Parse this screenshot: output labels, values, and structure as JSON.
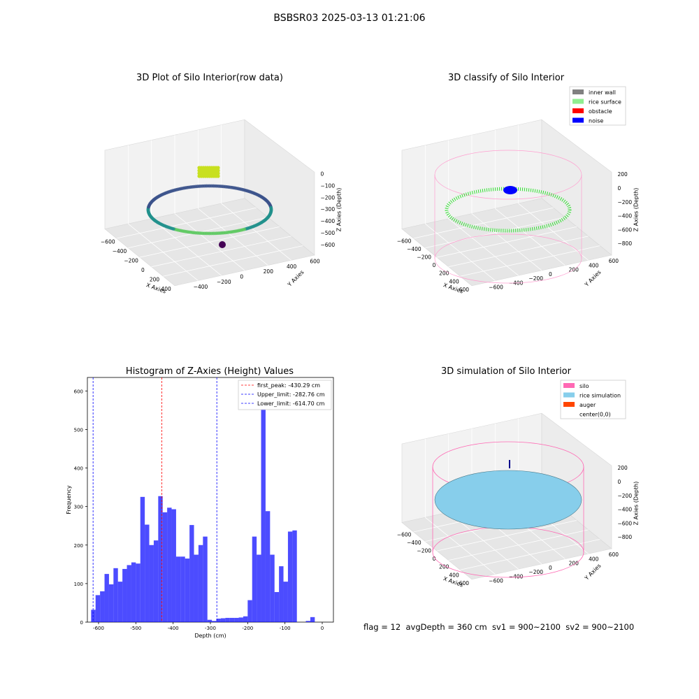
{
  "suptitle": "BSBSR03 2025-03-13 01:21:06",
  "status_text": "flag = 12  avgDepth = 360 cm  sv1 = 900~2100  sv2 = 900~2100",
  "chart_data": [
    {
      "type": "scatter",
      "title": "3D Plot of Silo Interior(row data)",
      "xlabel": "X Axies",
      "ylabel": "Y Axies",
      "zlabel": "Z Axies (Depth)",
      "x_ticks": [
        "−600",
        "−400",
        "−200",
        "0",
        "200",
        "400"
      ],
      "y_ticks": [
        "−400",
        "−200",
        "0",
        "200",
        "400",
        "600"
      ],
      "z_ticks": [
        "0",
        "−100",
        "−200",
        "−300",
        "−400",
        "−500",
        "−600"
      ],
      "colormap": "viridis"
    },
    {
      "type": "scatter",
      "title": "3D classify of Silo Interior",
      "xlabel": "X Axies",
      "ylabel": "Y Axies",
      "zlabel": "Z Axies (Depth)",
      "x_ticks": [
        "−600",
        "−400",
        "−200",
        "0",
        "200",
        "400",
        "600"
      ],
      "y_ticks": [
        "−600",
        "−400",
        "−200",
        "0",
        "200",
        "400",
        "600"
      ],
      "z_ticks": [
        "200",
        "0",
        "−200",
        "−400",
        "−600",
        "−800"
      ],
      "legend": [
        {
          "label": "inner wall",
          "color": "#808080"
        },
        {
          "label": "rice surface",
          "color": "#90ee90"
        },
        {
          "label": "obstacle",
          "color": "#ff0000"
        },
        {
          "label": "noise",
          "color": "#0000ff"
        }
      ]
    },
    {
      "type": "bar",
      "title": "Histogram of Z-Axies (Height) Values",
      "xlabel": "Depth (cm)",
      "ylabel": "Frequency",
      "xlim": [
        -630,
        30
      ],
      "ylim": [
        0,
        635
      ],
      "x_ticks": [
        -600,
        -500,
        -400,
        -300,
        -200,
        -100,
        0
      ],
      "y_ticks": [
        0,
        100,
        200,
        300,
        400,
        500,
        600
      ],
      "bin_edges": [
        -620,
        -608,
        -596,
        -584,
        -572,
        -560,
        -548,
        -536,
        -524,
        -512,
        -500,
        -488,
        -476,
        -464,
        -452,
        -440,
        -428,
        -416,
        -404,
        -392,
        -380,
        -368,
        -356,
        -344,
        -332,
        -320,
        -308,
        -296,
        -284,
        -272,
        -260,
        -248,
        -236,
        -224,
        -212,
        -200,
        -188,
        -176,
        -164,
        -152,
        -140,
        -128,
        -116,
        -104,
        -92,
        -80,
        -68,
        -56,
        -44,
        -32,
        -20,
        -8,
        4
      ],
      "counts": [
        32,
        70,
        80,
        125,
        98,
        140,
        105,
        138,
        148,
        155,
        152,
        325,
        253,
        200,
        212,
        327,
        285,
        297,
        293,
        170,
        170,
        165,
        252,
        175,
        200,
        222,
        6,
        3,
        9,
        10,
        11,
        11,
        11,
        12,
        15,
        57,
        222,
        175,
        600,
        288,
        175,
        78,
        145,
        105,
        235,
        238,
        0,
        0,
        3,
        13,
        0,
        0
      ],
      "bar_color": "#0000ff",
      "vlines": [
        {
          "label": "first_peak: -430.29 cm",
          "x": -430.29,
          "color": "#ff0000"
        },
        {
          "label": "Upper_limit: -282.76 cm",
          "x": -282.76,
          "color": "#0000ff"
        },
        {
          "label": "Lower_limit: -614.70 cm",
          "x": -614.7,
          "color": "#0000ff"
        }
      ]
    },
    {
      "type": "other",
      "title": "3D simulation of Silo Interior",
      "xlabel": "X Axies",
      "ylabel": "Y Axies",
      "zlabel": "Z Axies (Depth)",
      "x_ticks": [
        "−600",
        "−400",
        "−200",
        "0",
        "200",
        "400",
        "600"
      ],
      "y_ticks": [
        "−600",
        "−400",
        "−200",
        "0",
        "200",
        "400",
        "600"
      ],
      "z_ticks": [
        "200",
        "0",
        "−200",
        "−400",
        "−600",
        "−800"
      ],
      "legend": [
        {
          "label": "silo",
          "color": "#ff69b4"
        },
        {
          "label": "rice simulation",
          "color": "#87ceeb"
        },
        {
          "label": "auger",
          "color": "#ff4500"
        },
        {
          "label": "center(0,0)",
          "color": ""
        }
      ]
    }
  ]
}
